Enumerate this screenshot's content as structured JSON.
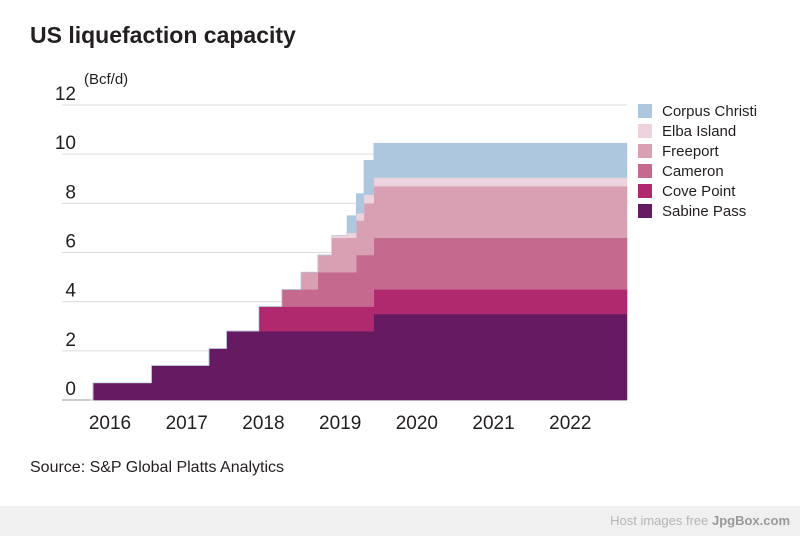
{
  "title": "US liquefaction capacity",
  "unit_label": "(Bcf/d)",
  "source": "Source: S&P Global Platts Analytics",
  "footer": {
    "prefix": "Host images free ",
    "brand": "JpgBox.com"
  },
  "chart_data": {
    "type": "area",
    "stacked": true,
    "step": true,
    "title": "US liquefaction capacity",
    "ylabel": "(Bcf/d)",
    "xlabel": "",
    "ylim": [
      0,
      12
    ],
    "xlim": [
      2016.0,
      2023.0
    ],
    "yticks": [
      0,
      2,
      4,
      6,
      8,
      10,
      12
    ],
    "xticks": [
      2016,
      2017,
      2018,
      2019,
      2020,
      2021,
      2022
    ],
    "grid": "horizontal",
    "legend_position": "right",
    "x": [
      2016.0,
      2016.04,
      2016.4,
      2016.8,
      2017.55,
      2017.78,
      2018.2,
      2018.5,
      2018.75,
      2018.97,
      2019.15,
      2019.35,
      2019.47,
      2019.57,
      2019.7,
      2023.0
    ],
    "series": [
      {
        "name": "Sabine Pass",
        "color": "#661a62",
        "values": [
          0,
          0.7,
          0.7,
          1.4,
          2.1,
          2.8,
          2.8,
          2.8,
          2.8,
          2.8,
          2.8,
          2.8,
          2.8,
          2.8,
          3.5,
          3.5
        ]
      },
      {
        "name": "Cove Point",
        "color": "#b0296e",
        "values": [
          0,
          0,
          0,
          0,
          0,
          0,
          1.0,
          1.0,
          1.0,
          1.0,
          1.0,
          1.0,
          1.0,
          1.0,
          1.0,
          1.0
        ]
      },
      {
        "name": "Cameron",
        "color": "#c56a8e",
        "values": [
          0,
          0,
          0,
          0,
          0,
          0,
          0,
          0.7,
          0.7,
          1.4,
          1.4,
          1.4,
          2.1,
          2.1,
          2.1,
          2.1
        ]
      },
      {
        "name": "Freeport",
        "color": "#d99fb3",
        "values": [
          0,
          0,
          0,
          0,
          0,
          0,
          0,
          0,
          0.7,
          0.7,
          1.4,
          1.4,
          1.4,
          2.1,
          2.1,
          2.1
        ]
      },
      {
        "name": "Elba Island",
        "color": "#ecd3de",
        "values": [
          0,
          0,
          0,
          0,
          0,
          0,
          0,
          0,
          0,
          0,
          0.1,
          0.2,
          0.3,
          0.35,
          0.35,
          0.35
        ]
      },
      {
        "name": "Corpus Christi",
        "color": "#adc7df",
        "values": [
          0,
          0,
          0,
          0,
          0,
          0,
          0,
          0,
          0,
          0,
          0,
          0.7,
          0.8,
          1.4,
          1.4,
          1.4
        ]
      }
    ],
    "legend": [
      "Corpus Christi",
      "Elba Island",
      "Freeport",
      "Cameron",
      "Cove Point",
      "Sabine Pass"
    ]
  }
}
